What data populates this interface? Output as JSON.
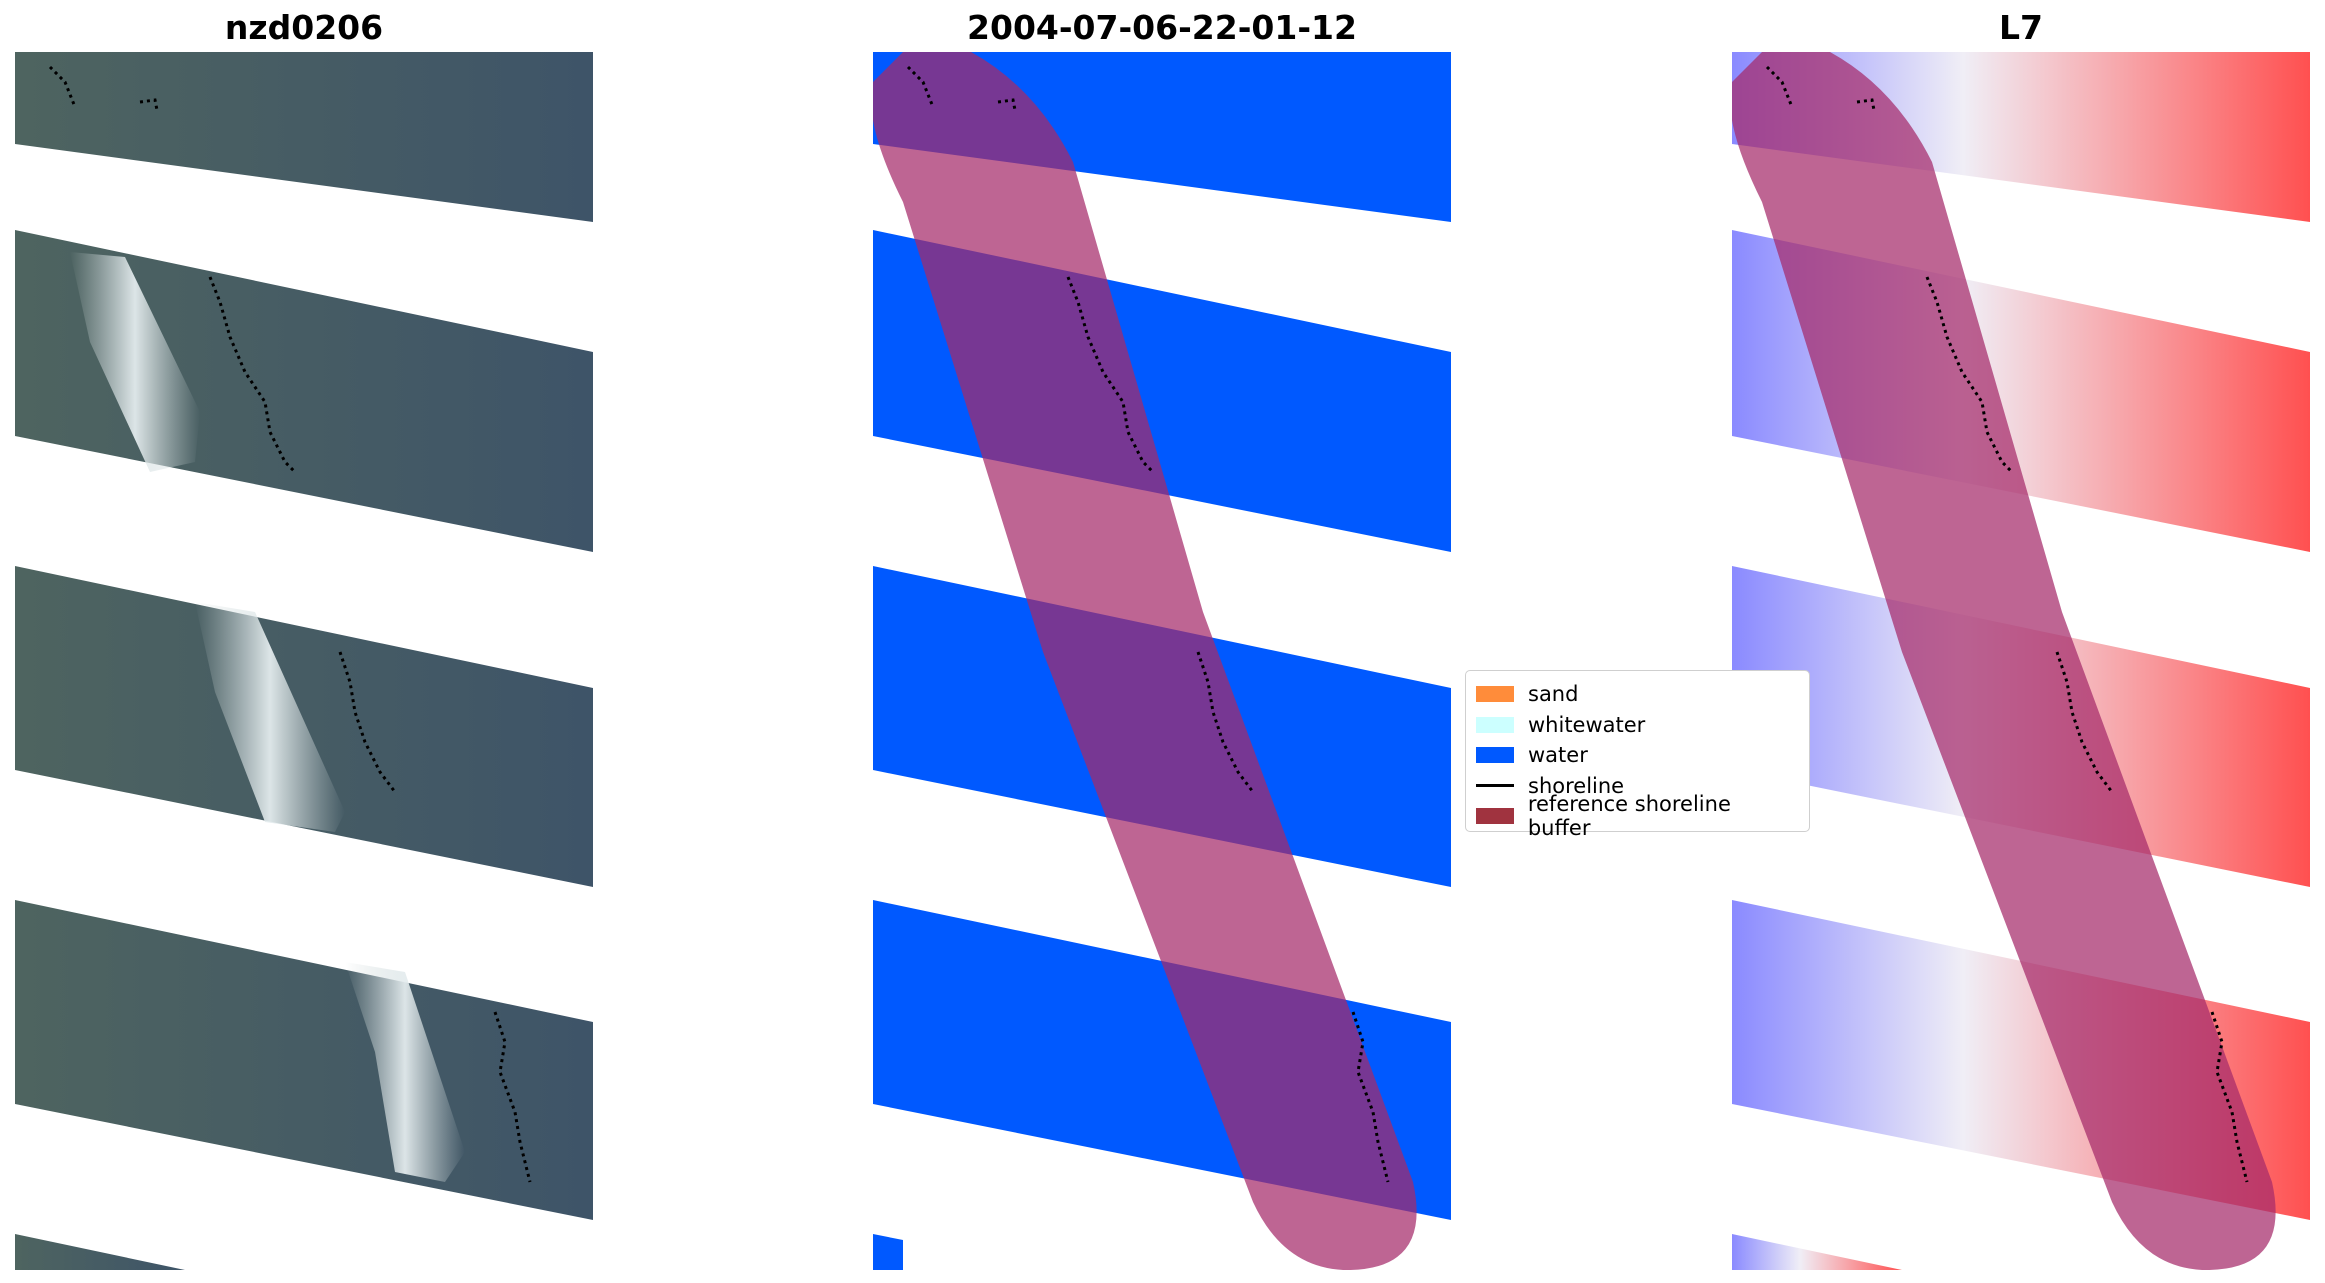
{
  "panels": [
    {
      "title": "nzd0206"
    },
    {
      "title": "2004-07-06-22-01-12"
    },
    {
      "title": "L7"
    }
  ],
  "legend": {
    "items": [
      {
        "label": "sand",
        "color": "#ff8c3a",
        "kind": "patch"
      },
      {
        "label": "whitewater",
        "color": "#ccffff",
        "kind": "patch"
      },
      {
        "label": "water",
        "color": "#0059ff",
        "kind": "patch"
      },
      {
        "label": "shoreline",
        "color": "#000000",
        "kind": "line"
      },
      {
        "label": "reference shoreline buffer",
        "color": "#a0333f",
        "kind": "patch"
      }
    ]
  },
  "colors": {
    "rgb_image_base": "#5a6e6a",
    "rgb_cloud": "#d8e2e6",
    "water": "#0059ff",
    "buffer": "#a52a6a",
    "index_positive": "#ff3030",
    "index_negative": "#3a3aff"
  }
}
